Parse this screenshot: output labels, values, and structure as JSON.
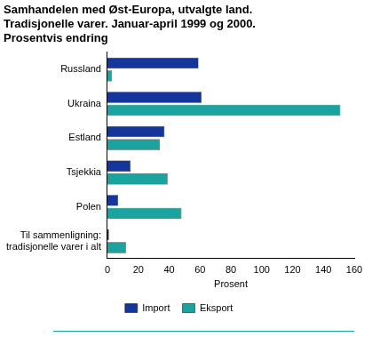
{
  "chart_data": {
    "type": "bar",
    "orientation": "horizontal",
    "title": [
      "Samhandelen med Øst-Europa, utvalgte land.",
      "Tradisjonelle varer. Januar-april 1999 og 2000.",
      "Prosentvis endring"
    ],
    "categories": [
      "Russland",
      "Ukraina",
      "Estland",
      "Tsjekkia",
      "Polen",
      "Til sammenligning: tradisjonelle varer i alt"
    ],
    "series": [
      {
        "name": "Import",
        "color": "#14359c",
        "values": [
          59,
          61,
          37,
          15,
          7,
          1
        ]
      },
      {
        "name": "Eksport",
        "color": "#1ba3a0",
        "values": [
          3,
          151,
          34,
          39,
          48,
          12
        ]
      }
    ],
    "xlabel": "Prosent",
    "xlim": [
      0,
      160
    ],
    "xticks": [
      0,
      20,
      40,
      60,
      80,
      100,
      120,
      140,
      160
    ],
    "grid": false,
    "legend": "bottom"
  }
}
